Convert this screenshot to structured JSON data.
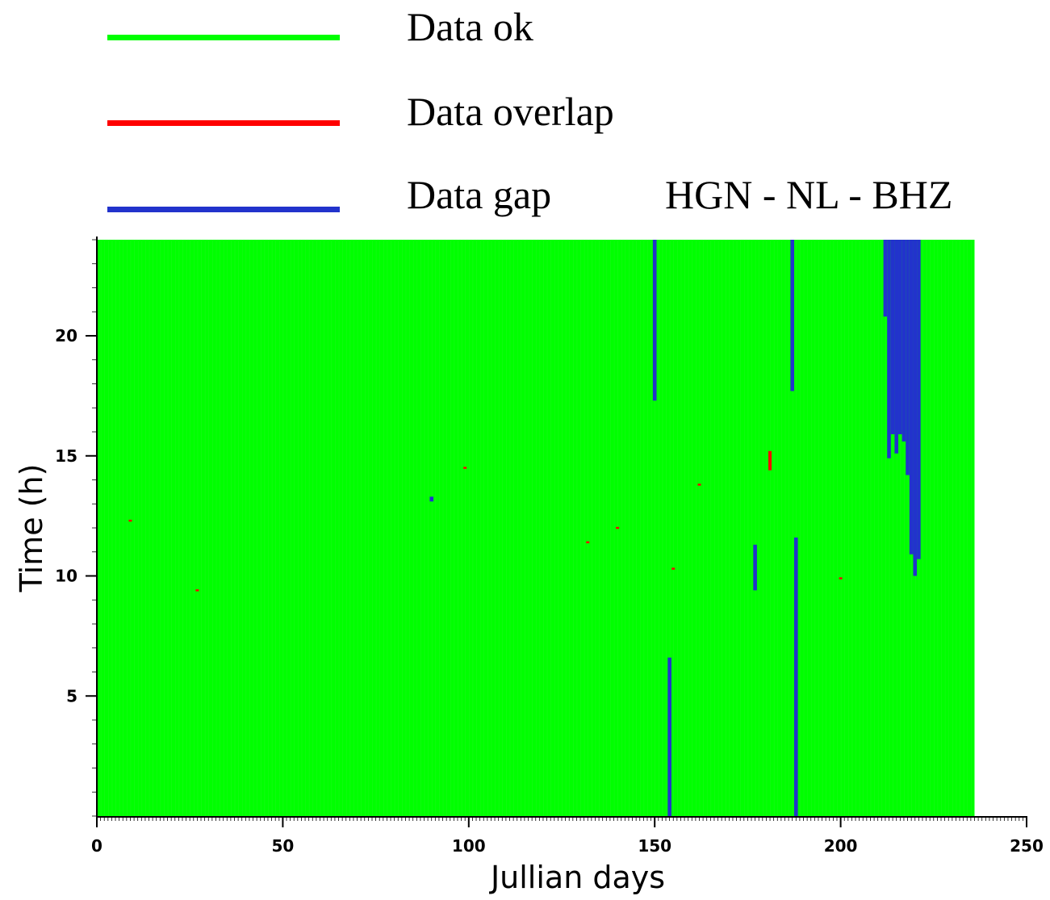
{
  "legend": [
    {
      "label": "Data ok",
      "color": "#00ff00"
    },
    {
      "label": "Data overlap",
      "color": "#ff0000"
    },
    {
      "label": "Data gap",
      "color": "#2233cc"
    }
  ],
  "station_label": "HGN - NL - BHZ",
  "chart_data": {
    "type": "heatmap",
    "title": "HGN - NL - BHZ",
    "xlabel": "Jullian days",
    "ylabel": "Time (h)",
    "xlim": [
      0,
      250
    ],
    "ylim": [
      0,
      24
    ],
    "data_extent_days": [
      0,
      236
    ],
    "xticks": [
      0,
      50,
      100,
      150,
      200,
      250
    ],
    "yticks": [
      5,
      10,
      15,
      20
    ],
    "background_status": "Data ok",
    "colors": {
      "ok": "#00ff00",
      "overlap": "#ff0000",
      "gap": "#2233cc"
    },
    "gaps": [
      {
        "day": 150,
        "start_h": 17.3,
        "end_h": 24
      },
      {
        "day": 154,
        "start_h": 0,
        "end_h": 6.6
      },
      {
        "day": 177,
        "start_h": 9.4,
        "end_h": 11.3
      },
      {
        "day": 187,
        "start_h": 17.7,
        "end_h": 24
      },
      {
        "day": 188,
        "start_h": 0,
        "end_h": 11.6
      },
      {
        "day": 90,
        "start_h": 13.1,
        "end_h": 13.3
      },
      {
        "day": 212,
        "start_h": 20.8,
        "end_h": 24
      },
      {
        "day": 213,
        "start_h": 14.9,
        "end_h": 24
      },
      {
        "day": 214,
        "start_h": 15.9,
        "end_h": 24
      },
      {
        "day": 215,
        "start_h": 15.1,
        "end_h": 24
      },
      {
        "day": 216,
        "start_h": 15.9,
        "end_h": 24
      },
      {
        "day": 217,
        "start_h": 15.6,
        "end_h": 24
      },
      {
        "day": 218,
        "start_h": 14.2,
        "end_h": 24
      },
      {
        "day": 219,
        "start_h": 10.9,
        "end_h": 24
      },
      {
        "day": 220,
        "start_h": 10.0,
        "end_h": 24
      },
      {
        "day": 221,
        "start_h": 10.7,
        "end_h": 24
      }
    ],
    "overlaps": [
      {
        "day": 9,
        "hour": 12.3
      },
      {
        "day": 27,
        "hour": 9.4
      },
      {
        "day": 99,
        "hour": 14.5
      },
      {
        "day": 132,
        "hour": 11.4
      },
      {
        "day": 140,
        "hour": 12.0
      },
      {
        "day": 155,
        "hour": 10.3
      },
      {
        "day": 162,
        "hour": 13.8
      },
      {
        "day": 181,
        "start_h": 14.4,
        "end_h": 15.2
      },
      {
        "day": 200,
        "hour": 9.9
      }
    ]
  }
}
